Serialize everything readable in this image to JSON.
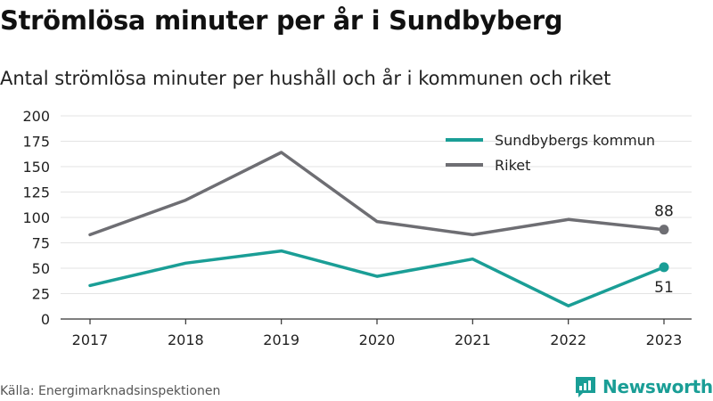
{
  "title": "Strömlösa minuter per år i Sundbyberg",
  "subtitle": "Antal strömlösa minuter per hushåll och år i kommunen och riket",
  "source": "Källa: Energimarknadsinspektionen",
  "brand": {
    "name": "Newsworthy",
    "icon": "newsworthy-logo-icon",
    "color": "#1a9e96"
  },
  "chart_data": {
    "type": "line",
    "x": [
      "2017",
      "2018",
      "2019",
      "2020",
      "2021",
      "2022",
      "2023"
    ],
    "yticks": [
      "0",
      "25",
      "50",
      "75",
      "100",
      "125",
      "150",
      "175",
      "200"
    ],
    "ylim": [
      0,
      200
    ],
    "grid": true,
    "legend_position": "top-right",
    "series": [
      {
        "name": "Sundbybergs kommun",
        "color": "#1a9e96",
        "values": [
          33,
          55,
          67,
          42,
          59,
          13,
          51
        ],
        "last_label": "51",
        "label_side": "below"
      },
      {
        "name": "Riket",
        "color": "#6e6e73",
        "values": [
          83,
          117,
          164,
          96,
          83,
          98,
          88
        ],
        "last_label": "88",
        "label_side": "above"
      }
    ]
  }
}
